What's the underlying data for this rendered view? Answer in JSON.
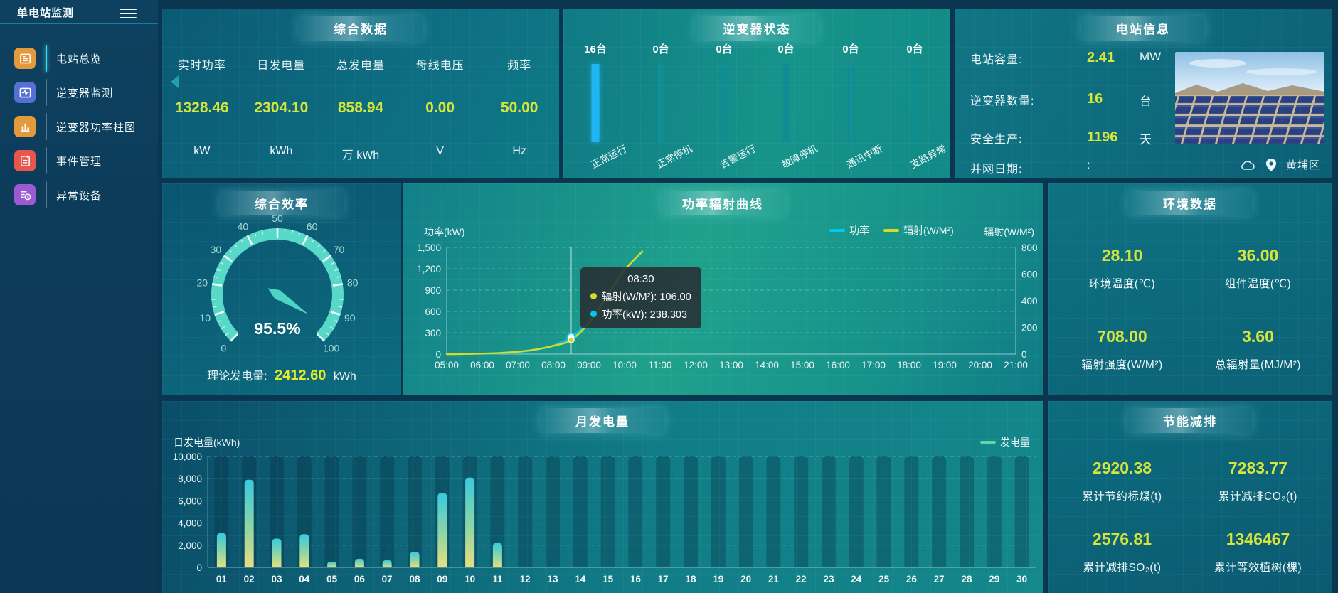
{
  "app": {
    "title": "单电站监测"
  },
  "sidebar": {
    "items": [
      {
        "key": "overview",
        "label": "电站总览",
        "icon": "report-icon",
        "color": "#e29a3c",
        "active": true
      },
      {
        "key": "inverter-monitor",
        "label": "逆变器监测",
        "icon": "pulse-icon",
        "color": "#5570d2",
        "active": false
      },
      {
        "key": "inverter-power",
        "label": "逆变器功率柱图",
        "icon": "bar-chart-icon",
        "color": "#e29a3c",
        "active": false
      },
      {
        "key": "events",
        "label": "事件管理",
        "icon": "clipboard-icon",
        "color": "#e8564e",
        "active": false
      },
      {
        "key": "abnormal",
        "label": "异常设备",
        "icon": "device-list-icon",
        "color": "#9c5ad2",
        "active": false
      }
    ]
  },
  "summary": {
    "title": "综合数据",
    "metrics": [
      {
        "label": "实时功率",
        "value": "1328.46",
        "unit": "kW"
      },
      {
        "label": "日发电量",
        "value": "2304.10",
        "unit": "kWh"
      },
      {
        "label": "总发电量",
        "value": "858.94",
        "unit": "万 kWh"
      },
      {
        "label": "母线电压",
        "value": "0.00",
        "unit": "V"
      },
      {
        "label": "频率",
        "value": "50.00",
        "unit": "Hz"
      }
    ]
  },
  "inverter": {
    "title": "逆变器状态"
  },
  "station": {
    "title": "电站信息",
    "location": "黄埔区",
    "rows": [
      {
        "label": "电站容量:",
        "value": "2.41",
        "unit": "MW",
        "muted": false
      },
      {
        "label": "逆变器数量:",
        "value": "16",
        "unit": "台",
        "muted": false
      },
      {
        "label": "安全生产:",
        "value": "1196",
        "unit": "天",
        "muted": false
      },
      {
        "label": "并网日期:",
        "value": ":",
        "unit": "",
        "muted": true
      }
    ]
  },
  "efficiency": {
    "title": "综合效率",
    "footer_label": "理论发电量:",
    "footer_value": "2412.60",
    "footer_unit": "kWh"
  },
  "power_curve": {
    "title": "功率辐射曲线",
    "tooltip": {
      "time": "08:30",
      "rows": [
        {
          "color": "#d8da25",
          "label": "辐射(W/M²)",
          "value": "106.00"
        },
        {
          "color": "#00c8f2",
          "label": "功率(kW)",
          "value": "238.303"
        }
      ]
    }
  },
  "environment": {
    "title": "环境数据",
    "cells": [
      {
        "value": "28.10",
        "label": "环境温度(℃)"
      },
      {
        "value": "36.00",
        "label": "组件温度(℃)"
      },
      {
        "value": "708.00",
        "label": "辐射强度(W/M²)"
      },
      {
        "value": "3.60",
        "label": "总辐射量(MJ/M²)"
      }
    ]
  },
  "monthly": {
    "title": "月发电量"
  },
  "saving": {
    "title": "节能减排",
    "cells": [
      {
        "value": "2920.38",
        "label": "累计节约标煤(t)"
      },
      {
        "value": "7283.77",
        "label": "累计减排CO₂(t)"
      },
      {
        "value": "2576.81",
        "label": "累计减排SO₂(t)"
      },
      {
        "value": "1346467",
        "label": "累计等效植树(棵)"
      }
    ]
  },
  "chart_data": [
    {
      "id": "inverter_status",
      "type": "bar",
      "title": "逆变器状态",
      "categories": [
        "正常运行",
        "正常停机",
        "告警运行",
        "故障停机",
        "通讯中断",
        "支路异常"
      ],
      "values": [
        16,
        0,
        0,
        0,
        0,
        0
      ],
      "unit": "台",
      "highlight_color": "#1fb5f2",
      "bar_color": "#0f8d93"
    },
    {
      "id": "efficiency_gauge",
      "type": "gauge",
      "min": 0,
      "max": 100,
      "value": 95.5,
      "display": "95.5%",
      "tick_step": 10,
      "color": "#57d8c8"
    },
    {
      "id": "power_radiation",
      "type": "line",
      "title": "功率辐射曲线",
      "x_labels": [
        "05:00",
        "06:00",
        "07:00",
        "08:00",
        "09:00",
        "10:00",
        "11:00",
        "12:00",
        "13:00",
        "14:00",
        "15:00",
        "16:00",
        "17:00",
        "18:00",
        "19:00",
        "20:00",
        "21:00"
      ],
      "x_total_hours": 16,
      "left_axis": {
        "name": "功率(kW)",
        "ticks": [
          "0",
          "300",
          "600",
          "900",
          "1,200",
          "1,500"
        ],
        "max": 1500
      },
      "right_axis": {
        "name": "辐射(W/M²)",
        "ticks": [
          "0",
          "200",
          "400",
          "600",
          "800"
        ],
        "max": 800
      },
      "series": [
        {
          "name": "功率",
          "color": "#00c8f2",
          "axis": "left",
          "hours": [
            0,
            0.5,
            1,
            1.5,
            2,
            2.5,
            3,
            3.5,
            4,
            4.5,
            5,
            5.5
          ],
          "values": [
            0,
            2,
            6,
            14,
            30,
            60,
            120,
            238.3,
            460,
            820,
            1180,
            1440
          ]
        },
        {
          "name": "辐射(W/M²)",
          "color": "#d8da25",
          "axis": "right",
          "hours": [
            0,
            0.5,
            1,
            1.5,
            2,
            2.5,
            3,
            3.5,
            4,
            4.5,
            5,
            5.5
          ],
          "values": [
            0,
            1,
            4,
            9,
            18,
            35,
            62,
            106,
            235,
            430,
            630,
            770
          ]
        }
      ],
      "hover_hour": 3.5,
      "hover_time": "08:30"
    },
    {
      "id": "monthly_generation",
      "type": "bar",
      "title": "月发电量",
      "legend": "发电量",
      "legend_color": "#5ad8a6",
      "y_axis": {
        "name": "日发电量(kWh)",
        "ticks": [
          "0",
          "2,000",
          "4,000",
          "6,000",
          "8,000",
          "10,000"
        ],
        "max": 10000
      },
      "categories": [
        "01",
        "02",
        "03",
        "04",
        "05",
        "06",
        "07",
        "08",
        "09",
        "10",
        "11",
        "12",
        "13",
        "14",
        "15",
        "16",
        "17",
        "18",
        "19",
        "20",
        "21",
        "22",
        "23",
        "24",
        "25",
        "26",
        "27",
        "28",
        "29",
        "30"
      ],
      "values": [
        3100,
        7900,
        2600,
        3000,
        500,
        780,
        650,
        1400,
        6700,
        8100,
        2200,
        0,
        0,
        0,
        0,
        0,
        0,
        0,
        0,
        0,
        0,
        0,
        0,
        0,
        0,
        0,
        0,
        0,
        0,
        0
      ]
    }
  ]
}
